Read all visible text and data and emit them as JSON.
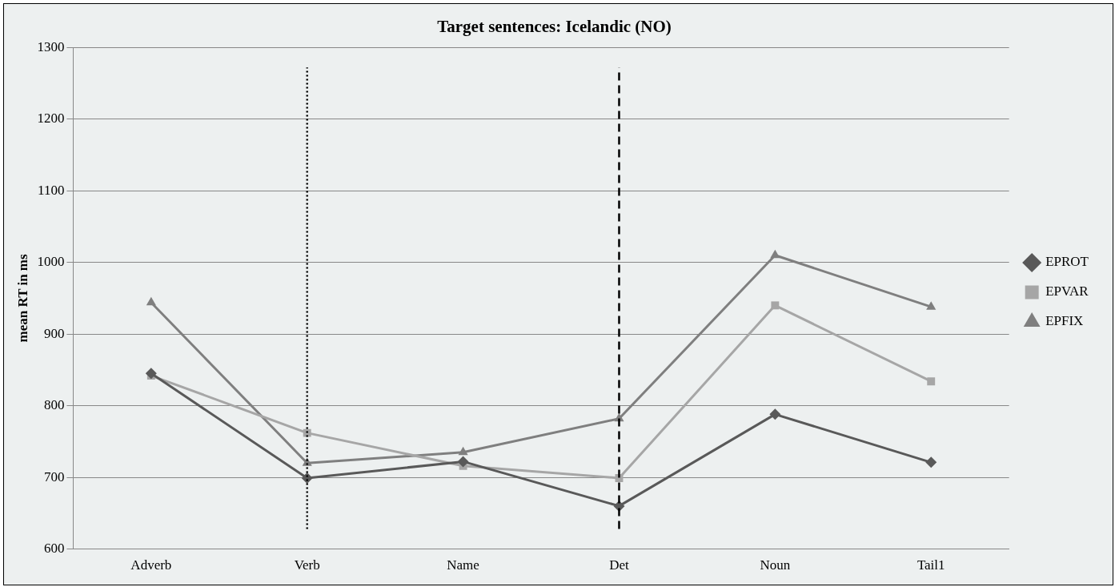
{
  "chart_data": {
    "type": "line",
    "title": "Target sentences: Icelandic (NO)",
    "ylabel": "mean RT in ms",
    "categories": [
      "Adverb",
      "Verb",
      "Name",
      "Det",
      "Noun",
      "Tail1"
    ],
    "series": [
      {
        "name": "EPROT",
        "color": "#595959",
        "marker": "diamond",
        "values": [
          845,
          699,
          722,
          660,
          788,
          721
        ]
      },
      {
        "name": "EPVAR",
        "color": "#a6a6a6",
        "marker": "square",
        "values": [
          842,
          762,
          716,
          699,
          940,
          834
        ]
      },
      {
        "name": "EPFIX",
        "color": "#7f7f7f",
        "marker": "triangle",
        "values": [
          944,
          720,
          735,
          782,
          1010,
          938
        ]
      }
    ],
    "ylim": [
      600,
      1300
    ],
    "yticks": [
      600,
      700,
      800,
      900,
      1000,
      1100,
      1200,
      1300
    ],
    "grid": "y",
    "legend": "right",
    "ref_lines": [
      {
        "axis": "x",
        "value": "Verb",
        "line_style": "dotted",
        "color": "#000000"
      },
      {
        "axis": "x",
        "value": "Det",
        "line_style": "dashed",
        "color": "#000000"
      }
    ]
  }
}
